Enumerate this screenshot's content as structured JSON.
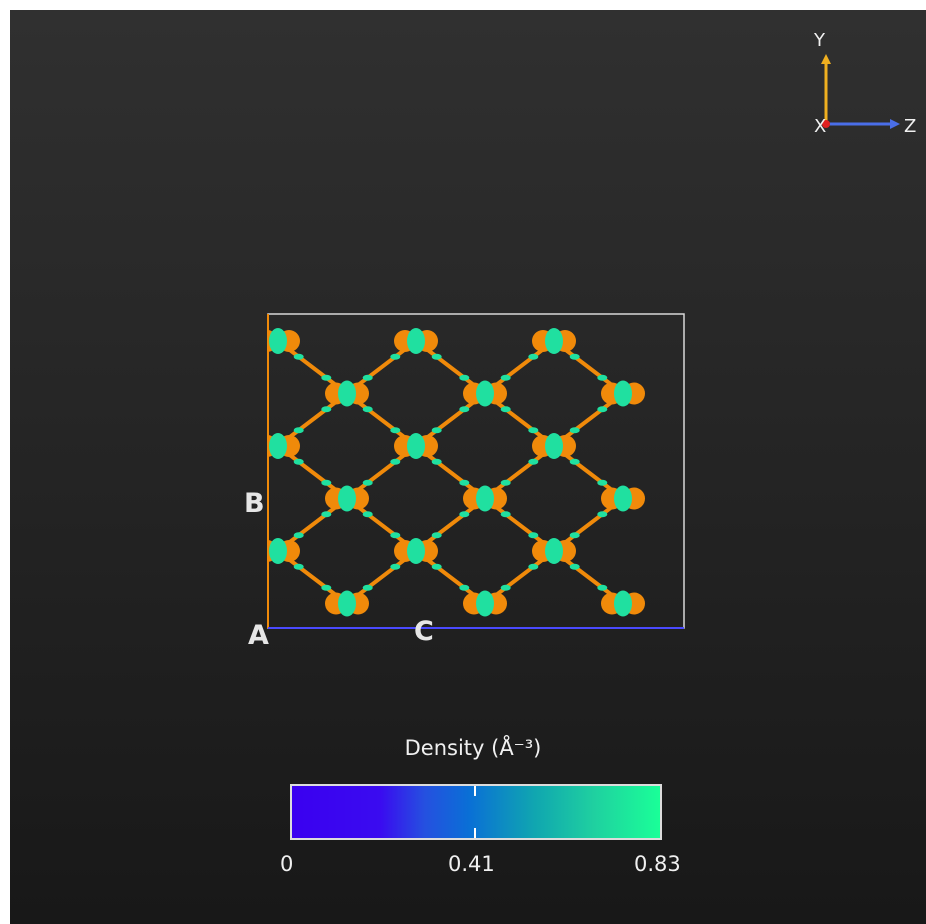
{
  "axis_triad": {
    "y_label": "Y",
    "z_label": "Z",
    "x_label": "X"
  },
  "cell_labels": {
    "a": "A",
    "b": "B",
    "c": "C"
  },
  "legend": {
    "title": "Density (Å⁻³)",
    "min_label": "0",
    "mid_label": "0.41",
    "max_label": "0.83"
  },
  "colors": {
    "atom_orange": "#f08a0a",
    "density_green": "#20e0a0",
    "axis_y": "#f0b020",
    "axis_z": "#4a6ee8",
    "axis_x": "#e02020",
    "cell_edge_c": "#4a4aff",
    "cell_edge_b": "#f08a0a",
    "cell_edge": "#d8d8d8"
  }
}
